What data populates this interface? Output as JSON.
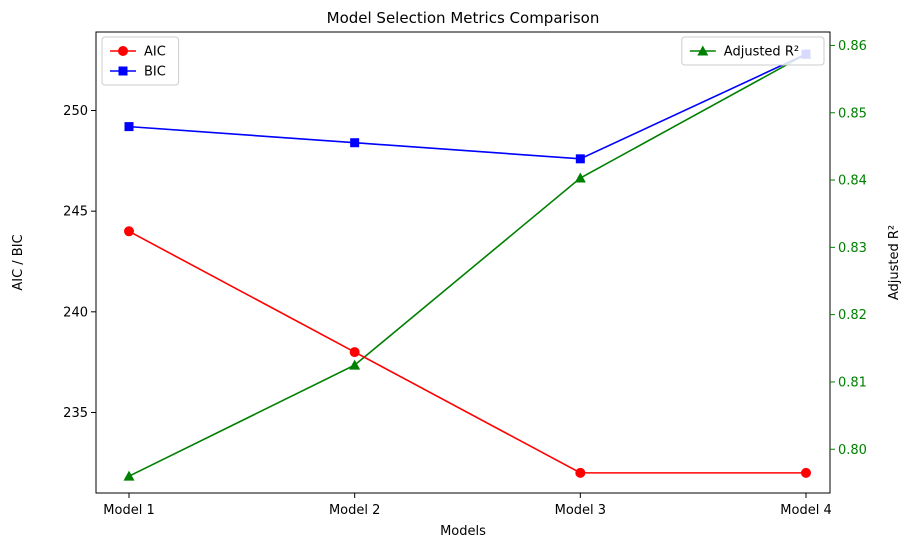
{
  "chart_data": {
    "type": "line",
    "title": "Model Selection Metrics Comparison",
    "xlabel": "Models",
    "ylabel_left": "AIC / BIC",
    "ylabel_right": "Adjusted R²",
    "categories": [
      "Model 1",
      "Model 2",
      "Model 3",
      "Model 4"
    ],
    "left_axis": {
      "ylim": [
        231,
        253.9
      ],
      "ticks": [
        235,
        240,
        245,
        250
      ],
      "tick_labels": [
        "235",
        "240",
        "245",
        "250"
      ]
    },
    "right_axis": {
      "ylim": [
        0.7935,
        0.862
      ],
      "ticks": [
        0.8,
        0.81,
        0.82,
        0.83,
        0.84,
        0.85,
        0.86
      ],
      "tick_labels": [
        "0.80",
        "0.81",
        "0.82",
        "0.83",
        "0.84",
        "0.85",
        "0.86"
      ],
      "color": "#008000"
    },
    "series": [
      {
        "name": "AIC",
        "axis": "left",
        "color": "#ff0000",
        "marker": "circle",
        "values": [
          244.0,
          238.0,
          232.0,
          232.0
        ]
      },
      {
        "name": "BIC",
        "axis": "left",
        "color": "#0000ff",
        "marker": "square",
        "values": [
          249.2,
          248.4,
          247.6,
          252.8
        ]
      },
      {
        "name": "Adjusted R²",
        "axis": "right",
        "color": "#008000",
        "marker": "triangle",
        "values": [
          0.796,
          0.8125,
          0.8403,
          0.8587
        ]
      }
    ],
    "legends": [
      {
        "placement": "top-left",
        "entries": [
          "AIC",
          "BIC"
        ]
      },
      {
        "placement": "top-right",
        "entries": [
          "Adjusted R²"
        ]
      }
    ],
    "grid": false
  }
}
